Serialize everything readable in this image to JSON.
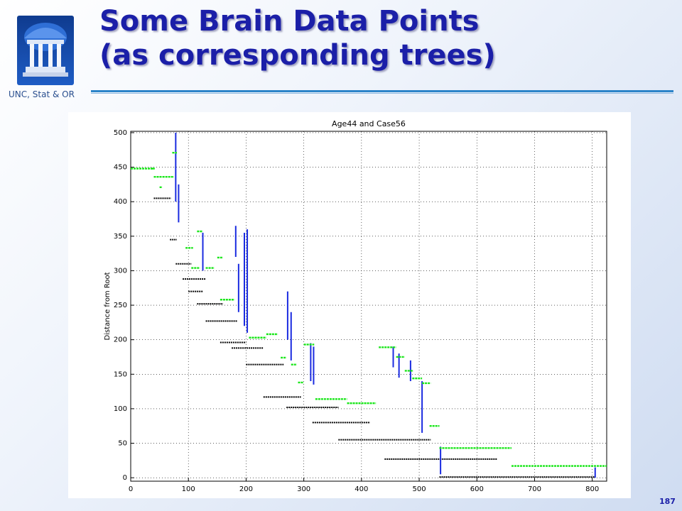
{
  "slide": {
    "title_line1": "Some Brain Data Points",
    "title_line2": "(as corresponding trees)",
    "organization": "UNC, Stat & OR",
    "page_number": "187"
  },
  "colors": {
    "title": "#1b1fa8",
    "rule": "#2c84c9",
    "leaf": "#19e619",
    "branch": "#1a2be0",
    "connector": "#000000"
  },
  "chart_data": {
    "type": "line",
    "title": "Age44 and Case56",
    "ylabel": "Distance from Root",
    "xlabel": "",
    "xlim": [
      0,
      825
    ],
    "ylim": [
      -5,
      502
    ],
    "grid": true,
    "xticks": [
      0,
      100,
      200,
      300,
      400,
      500,
      600,
      700,
      800
    ],
    "yticks": [
      0,
      50,
      100,
      150,
      200,
      250,
      300,
      350,
      400,
      450,
      500
    ],
    "leaf_segments": [
      {
        "x": [
          0,
          40
        ],
        "y": 448
      },
      {
        "x": 38,
        "y": 448
      },
      {
        "x": [
          40,
          55
        ],
        "y": 436
      },
      {
        "x": [
          55,
          75
        ],
        "y": 436
      },
      {
        "x": [
          50,
          55
        ],
        "y": 421
      },
      {
        "x": [
          72,
          80
        ],
        "y": 471
      },
      {
        "x": [
          95,
          108
        ],
        "y": 333
      },
      {
        "x": [
          105,
          120
        ],
        "y": 304
      },
      {
        "x": [
          115,
          125
        ],
        "y": 357
      },
      {
        "x": [
          130,
          145
        ],
        "y": 304
      },
      {
        "x": [
          150,
          160
        ],
        "y": 319
      },
      {
        "x": [
          155,
          180
        ],
        "y": 258
      },
      {
        "x": [
          205,
          235
        ],
        "y": 203
      },
      {
        "x": [
          235,
          255
        ],
        "y": 208
      },
      {
        "x": [
          260,
          270
        ],
        "y": 174
      },
      {
        "x": [
          278,
          288
        ],
        "y": 164
      },
      {
        "x": [
          290,
          300
        ],
        "y": 138
      },
      {
        "x": [
          300,
          318
        ],
        "y": 193
      },
      {
        "x": [
          320,
          375
        ],
        "y": 114
      },
      {
        "x": [
          375,
          425
        ],
        "y": 108
      },
      {
        "x": [
          430,
          460
        ],
        "y": 189
      },
      {
        "x": [
          460,
          475
        ],
        "y": 175
      },
      {
        "x": [
          475,
          490
        ],
        "y": 155
      },
      {
        "x": [
          488,
          505
        ],
        "y": 144
      },
      {
        "x": [
          505,
          520
        ],
        "y": 137
      },
      {
        "x": [
          518,
          535
        ],
        "y": 75
      },
      {
        "x": [
          535,
          660
        ],
        "y": 43
      },
      {
        "x": [
          660,
          825
        ],
        "y": 17
      }
    ],
    "branch_segments": [
      {
        "x": 78,
        "y": [
          400,
          500
        ]
      },
      {
        "x": 83,
        "y": [
          370,
          425
        ]
      },
      {
        "x": 125,
        "y": [
          300,
          355
        ]
      },
      {
        "x": 182,
        "y": [
          320,
          365
        ]
      },
      {
        "x": 187,
        "y": [
          240,
          310
        ]
      },
      {
        "x": 197,
        "y": [
          220,
          355
        ]
      },
      {
        "x": 202,
        "y": [
          210,
          360
        ]
      },
      {
        "x": 272,
        "y": [
          200,
          270
        ]
      },
      {
        "x": 278,
        "y": [
          170,
          240
        ]
      },
      {
        "x": 312,
        "y": [
          140,
          195
        ]
      },
      {
        "x": 317,
        "y": [
          135,
          190
        ]
      },
      {
        "x": 455,
        "y": [
          160,
          190
        ]
      },
      {
        "x": 465,
        "y": [
          145,
          180
        ]
      },
      {
        "x": 485,
        "y": [
          140,
          170
        ]
      },
      {
        "x": 505,
        "y": [
          65,
          140
        ]
      },
      {
        "x": 537,
        "y": [
          5,
          45
        ]
      },
      {
        "x": 805,
        "y": [
          0,
          15
        ]
      }
    ],
    "connector_segments": [
      {
        "x": [
          40,
          70
        ],
        "y": 405
      },
      {
        "x": [
          68,
          80
        ],
        "y": 345
      },
      {
        "x": [
          78,
          105
        ],
        "y": 310
      },
      {
        "x": [
          90,
          130
        ],
        "y": 288
      },
      {
        "x": [
          100,
          125
        ],
        "y": 270
      },
      {
        "x": [
          115,
          160
        ],
        "y": 252
      },
      {
        "x": [
          130,
          185
        ],
        "y": 227
      },
      {
        "x": [
          155,
          200
        ],
        "y": 196
      },
      {
        "x": [
          175,
          230
        ],
        "y": 188
      },
      {
        "x": [
          200,
          265
        ],
        "y": 164
      },
      {
        "x": [
          230,
          295
        ],
        "y": 117
      },
      {
        "x": [
          270,
          360
        ],
        "y": 102
      },
      {
        "x": [
          315,
          415
        ],
        "y": 80
      },
      {
        "x": [
          360,
          520
        ],
        "y": 55
      },
      {
        "x": [
          440,
          635
        ],
        "y": 27
      },
      {
        "x": [
          535,
          805
        ],
        "y": 1
      }
    ]
  }
}
